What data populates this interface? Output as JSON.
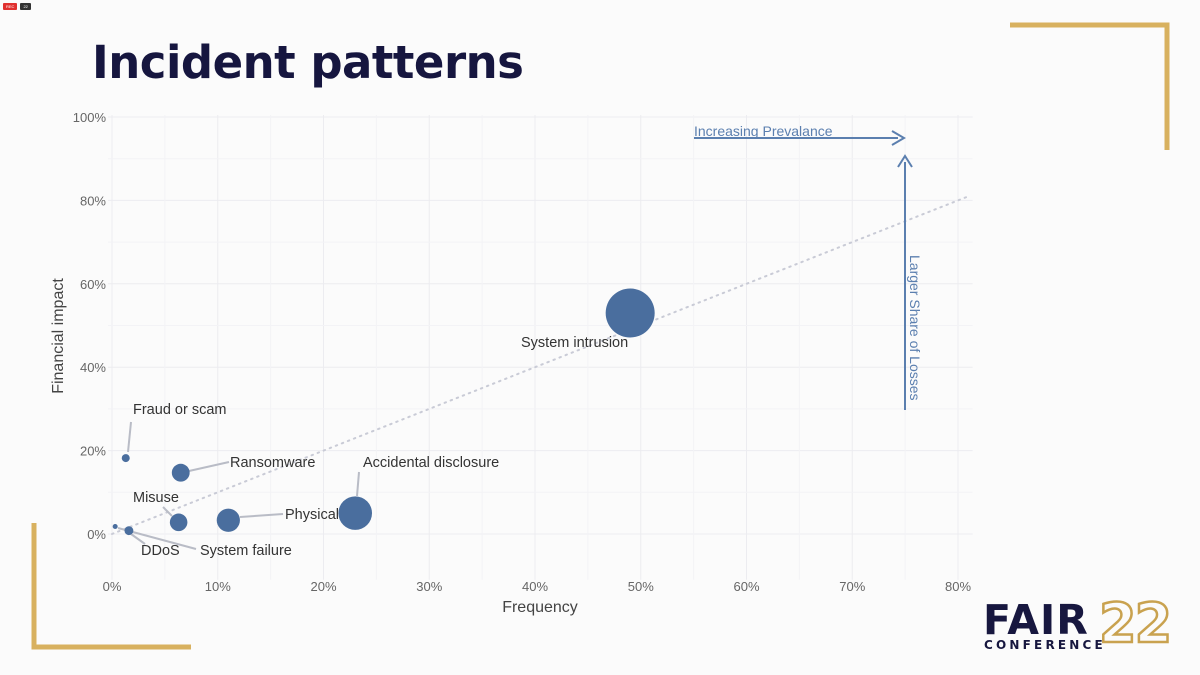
{
  "slide": {
    "title": "Incident patterns",
    "logo_wordmark": "FAIR",
    "logo_subtitle": "CONFERENCE",
    "logo_number": "22",
    "accent_color": "#c9a24f",
    "title_color": "#16163f"
  },
  "window": {
    "rec_badge": "REC",
    "viewer_count": "22"
  },
  "chart_data": {
    "type": "scatter",
    "title": "",
    "xlabel": "Frequency",
    "ylabel": "Financial impact",
    "xlim": [
      0,
      81
    ],
    "ylim": [
      -10,
      100
    ],
    "xticks": [
      "0%",
      "10%",
      "20%",
      "30%",
      "40%",
      "50%",
      "60%",
      "70%",
      "80%"
    ],
    "yticks": [
      "0%",
      "20%",
      "40%",
      "60%",
      "80%",
      "100%"
    ],
    "grid": true,
    "bubble_color": "#4a6e9e",
    "points": [
      {
        "label": "System intrusion",
        "x": 49,
        "y": 53,
        "size": 49
      },
      {
        "label": "Accidental disclosure",
        "x": 23,
        "y": 5,
        "size": 23
      },
      {
        "label": "Physical",
        "x": 11,
        "y": 3.3,
        "size": 11
      },
      {
        "label": "Ransomware",
        "x": 6.5,
        "y": 14.7,
        "size": 6.5
      },
      {
        "label": "Misuse",
        "x": 6.3,
        "y": 2.8,
        "size": 6.3
      },
      {
        "label": "Fraud or scam",
        "x": 1.3,
        "y": 18.2,
        "size": 1.3
      },
      {
        "label": "DDoS",
        "x": 1.6,
        "y": 0.8,
        "size": 1.6
      },
      {
        "label": "System failure",
        "x": 0.3,
        "y": 1.8,
        "size": 0.3
      }
    ],
    "trendline": {
      "from": [
        0,
        0
      ],
      "to": [
        81,
        81
      ]
    },
    "annotations": {
      "prevalence": "Increasing Prevalance",
      "losses": "Larger Share of Losses",
      "color": "#5b7faf"
    }
  }
}
